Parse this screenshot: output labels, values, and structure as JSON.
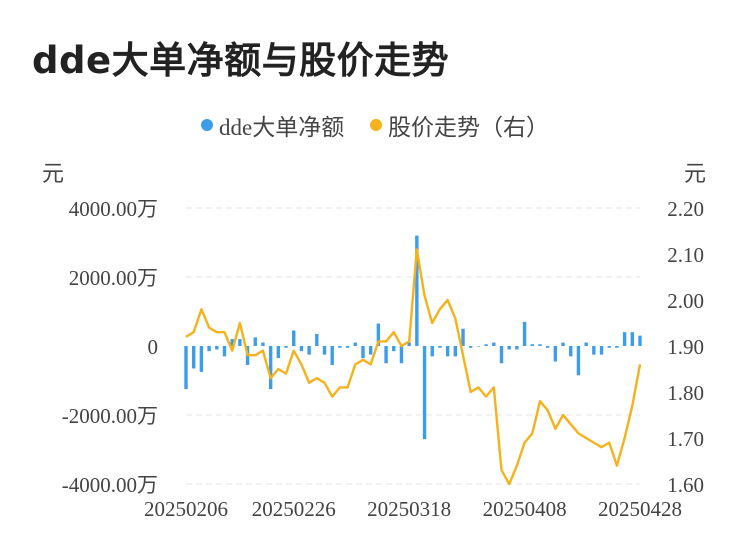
{
  "title": "dde大单净额与股价走势",
  "legend": {
    "left_label": "dde大单净额",
    "right_label": "股价走势（右）"
  },
  "units": {
    "left": "元",
    "right": "元"
  },
  "colors": {
    "bar": "#3d9de8",
    "line": "#f5b21d",
    "grid": "#e6e6e6"
  },
  "chart_data": {
    "type": "bar+line",
    "x_tick_labels": [
      "20250206",
      "20250226",
      "20250318",
      "20250408",
      "20250428"
    ],
    "y_left": {
      "ticks": [
        4000,
        2000,
        0,
        -2000,
        -4000
      ],
      "tick_labels": [
        "4000.00万",
        "2000.00万",
        "0",
        "-2000.00万",
        "-4000.00万"
      ],
      "range": [
        -4000,
        4000
      ]
    },
    "y_right": {
      "ticks": [
        2.2,
        2.1,
        2.0,
        1.9,
        1.8,
        1.7,
        1.6
      ],
      "tick_labels": [
        "2.20",
        "2.10",
        "2.00",
        "1.90",
        "1.80",
        "1.70",
        "1.60"
      ],
      "range": [
        1.6,
        2.2
      ]
    },
    "grid": true,
    "series": [
      {
        "name": "dde大单净额",
        "kind": "bar",
        "axis": "left",
        "values": [
          -1250,
          -650,
          -750,
          -150,
          -100,
          -300,
          200,
          200,
          -550,
          250,
          100,
          -1250,
          -350,
          -50,
          450,
          -150,
          -250,
          350,
          -250,
          -550,
          -50,
          -50,
          100,
          -350,
          -250,
          650,
          -500,
          -150,
          -500,
          100,
          3200,
          -2700,
          -300,
          -50,
          -300,
          -300,
          500,
          -50,
          0,
          50,
          100,
          -500,
          -100,
          -100,
          700,
          50,
          50,
          -50,
          -450,
          100,
          -300,
          -850,
          100,
          -250,
          -250,
          -50,
          -50,
          400,
          400,
          300
        ]
      },
      {
        "name": "股价走势（右）",
        "kind": "line",
        "axis": "right",
        "values": [
          1.92,
          1.93,
          1.98,
          1.94,
          1.93,
          1.93,
          1.89,
          1.95,
          1.88,
          1.88,
          1.89,
          1.83,
          1.85,
          1.84,
          1.89,
          1.86,
          1.82,
          1.83,
          1.82,
          1.79,
          1.81,
          1.81,
          1.86,
          1.87,
          1.86,
          1.91,
          1.91,
          1.93,
          1.9,
          1.91,
          2.11,
          2.01,
          1.95,
          1.98,
          2.0,
          1.96,
          1.88,
          1.8,
          1.81,
          1.79,
          1.81,
          1.63,
          1.6,
          1.64,
          1.69,
          1.71,
          1.78,
          1.76,
          1.72,
          1.75,
          1.73,
          1.71,
          1.7,
          1.69,
          1.68,
          1.69,
          1.64,
          1.7,
          1.77,
          1.86
        ]
      }
    ]
  }
}
